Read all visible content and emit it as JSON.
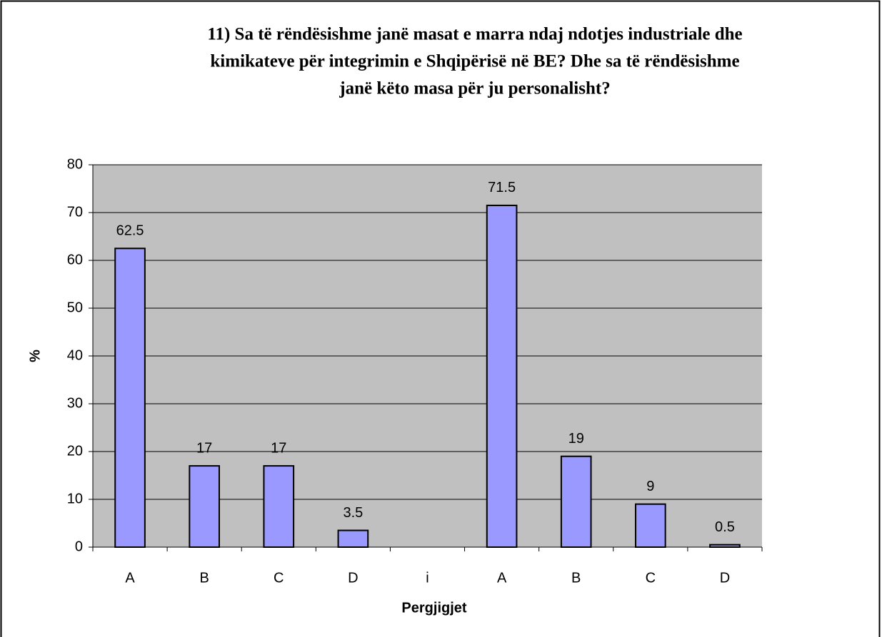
{
  "chart_data": {
    "type": "bar",
    "title": [
      "11) Sa të rëndësishme janë masat e marra ndaj ndotjes industriale dhe",
      "kimikateve për integrimin e Shqipërisë në BE? Dhe sa të rëndësishme",
      "janë këto masa për ju personalisht?"
    ],
    "x_label": "Pergjigjet",
    "y_label": "%",
    "categories": [
      "A",
      "B",
      "C",
      "D",
      "i",
      "A",
      "B",
      "C",
      "D"
    ],
    "values": [
      62.5,
      17,
      17,
      3.5,
      null,
      71.5,
      19,
      9,
      0.5
    ],
    "color": "#9999ff",
    "ylim": [
      0,
      80
    ],
    "yticks": [
      0,
      10,
      20,
      30,
      40,
      50,
      60,
      70,
      80
    ],
    "grid": true
  }
}
